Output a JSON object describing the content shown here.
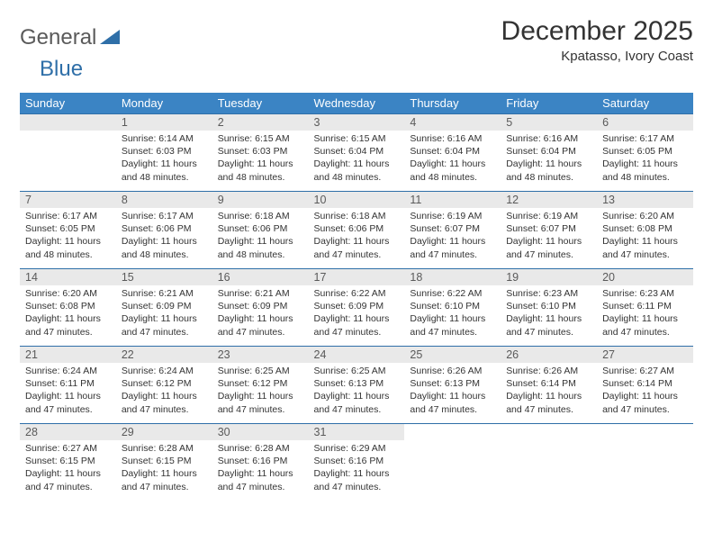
{
  "logo": {
    "text1": "General",
    "text2": "Blue"
  },
  "title": "December 2025",
  "location": "Kpatasso, Ivory Coast",
  "colors": {
    "header_bg": "#3b84c4",
    "header_text": "#ffffff",
    "daynum_bg": "#e9e9e9",
    "daynum_text": "#5a5a5a",
    "border": "#2f6fa8",
    "body_text": "#333333",
    "logo_gray": "#5a5a5a",
    "logo_blue": "#2f6fa8"
  },
  "weekdays": [
    "Sunday",
    "Monday",
    "Tuesday",
    "Wednesday",
    "Thursday",
    "Friday",
    "Saturday"
  ],
  "weeks": [
    [
      null,
      {
        "n": "1",
        "sr": "Sunrise: 6:14 AM",
        "ss": "Sunset: 6:03 PM",
        "dl": "Daylight: 11 hours and 48 minutes."
      },
      {
        "n": "2",
        "sr": "Sunrise: 6:15 AM",
        "ss": "Sunset: 6:03 PM",
        "dl": "Daylight: 11 hours and 48 minutes."
      },
      {
        "n": "3",
        "sr": "Sunrise: 6:15 AM",
        "ss": "Sunset: 6:04 PM",
        "dl": "Daylight: 11 hours and 48 minutes."
      },
      {
        "n": "4",
        "sr": "Sunrise: 6:16 AM",
        "ss": "Sunset: 6:04 PM",
        "dl": "Daylight: 11 hours and 48 minutes."
      },
      {
        "n": "5",
        "sr": "Sunrise: 6:16 AM",
        "ss": "Sunset: 6:04 PM",
        "dl": "Daylight: 11 hours and 48 minutes."
      },
      {
        "n": "6",
        "sr": "Sunrise: 6:17 AM",
        "ss": "Sunset: 6:05 PM",
        "dl": "Daylight: 11 hours and 48 minutes."
      }
    ],
    [
      {
        "n": "7",
        "sr": "Sunrise: 6:17 AM",
        "ss": "Sunset: 6:05 PM",
        "dl": "Daylight: 11 hours and 48 minutes."
      },
      {
        "n": "8",
        "sr": "Sunrise: 6:17 AM",
        "ss": "Sunset: 6:06 PM",
        "dl": "Daylight: 11 hours and 48 minutes."
      },
      {
        "n": "9",
        "sr": "Sunrise: 6:18 AM",
        "ss": "Sunset: 6:06 PM",
        "dl": "Daylight: 11 hours and 48 minutes."
      },
      {
        "n": "10",
        "sr": "Sunrise: 6:18 AM",
        "ss": "Sunset: 6:06 PM",
        "dl": "Daylight: 11 hours and 47 minutes."
      },
      {
        "n": "11",
        "sr": "Sunrise: 6:19 AM",
        "ss": "Sunset: 6:07 PM",
        "dl": "Daylight: 11 hours and 47 minutes."
      },
      {
        "n": "12",
        "sr": "Sunrise: 6:19 AM",
        "ss": "Sunset: 6:07 PM",
        "dl": "Daylight: 11 hours and 47 minutes."
      },
      {
        "n": "13",
        "sr": "Sunrise: 6:20 AM",
        "ss": "Sunset: 6:08 PM",
        "dl": "Daylight: 11 hours and 47 minutes."
      }
    ],
    [
      {
        "n": "14",
        "sr": "Sunrise: 6:20 AM",
        "ss": "Sunset: 6:08 PM",
        "dl": "Daylight: 11 hours and 47 minutes."
      },
      {
        "n": "15",
        "sr": "Sunrise: 6:21 AM",
        "ss": "Sunset: 6:09 PM",
        "dl": "Daylight: 11 hours and 47 minutes."
      },
      {
        "n": "16",
        "sr": "Sunrise: 6:21 AM",
        "ss": "Sunset: 6:09 PM",
        "dl": "Daylight: 11 hours and 47 minutes."
      },
      {
        "n": "17",
        "sr": "Sunrise: 6:22 AM",
        "ss": "Sunset: 6:09 PM",
        "dl": "Daylight: 11 hours and 47 minutes."
      },
      {
        "n": "18",
        "sr": "Sunrise: 6:22 AM",
        "ss": "Sunset: 6:10 PM",
        "dl": "Daylight: 11 hours and 47 minutes."
      },
      {
        "n": "19",
        "sr": "Sunrise: 6:23 AM",
        "ss": "Sunset: 6:10 PM",
        "dl": "Daylight: 11 hours and 47 minutes."
      },
      {
        "n": "20",
        "sr": "Sunrise: 6:23 AM",
        "ss": "Sunset: 6:11 PM",
        "dl": "Daylight: 11 hours and 47 minutes."
      }
    ],
    [
      {
        "n": "21",
        "sr": "Sunrise: 6:24 AM",
        "ss": "Sunset: 6:11 PM",
        "dl": "Daylight: 11 hours and 47 minutes."
      },
      {
        "n": "22",
        "sr": "Sunrise: 6:24 AM",
        "ss": "Sunset: 6:12 PM",
        "dl": "Daylight: 11 hours and 47 minutes."
      },
      {
        "n": "23",
        "sr": "Sunrise: 6:25 AM",
        "ss": "Sunset: 6:12 PM",
        "dl": "Daylight: 11 hours and 47 minutes."
      },
      {
        "n": "24",
        "sr": "Sunrise: 6:25 AM",
        "ss": "Sunset: 6:13 PM",
        "dl": "Daylight: 11 hours and 47 minutes."
      },
      {
        "n": "25",
        "sr": "Sunrise: 6:26 AM",
        "ss": "Sunset: 6:13 PM",
        "dl": "Daylight: 11 hours and 47 minutes."
      },
      {
        "n": "26",
        "sr": "Sunrise: 6:26 AM",
        "ss": "Sunset: 6:14 PM",
        "dl": "Daylight: 11 hours and 47 minutes."
      },
      {
        "n": "27",
        "sr": "Sunrise: 6:27 AM",
        "ss": "Sunset: 6:14 PM",
        "dl": "Daylight: 11 hours and 47 minutes."
      }
    ],
    [
      {
        "n": "28",
        "sr": "Sunrise: 6:27 AM",
        "ss": "Sunset: 6:15 PM",
        "dl": "Daylight: 11 hours and 47 minutes."
      },
      {
        "n": "29",
        "sr": "Sunrise: 6:28 AM",
        "ss": "Sunset: 6:15 PM",
        "dl": "Daylight: 11 hours and 47 minutes."
      },
      {
        "n": "30",
        "sr": "Sunrise: 6:28 AM",
        "ss": "Sunset: 6:16 PM",
        "dl": "Daylight: 11 hours and 47 minutes."
      },
      {
        "n": "31",
        "sr": "Sunrise: 6:29 AM",
        "ss": "Sunset: 6:16 PM",
        "dl": "Daylight: 11 hours and 47 minutes."
      },
      null,
      null,
      null
    ]
  ]
}
